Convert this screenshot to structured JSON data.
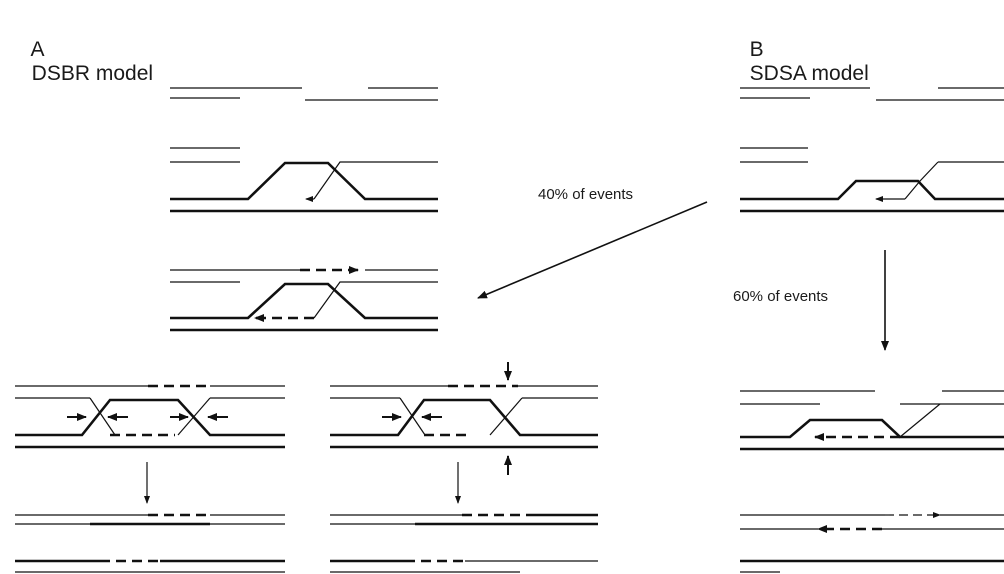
{
  "panels": {
    "a": {
      "letter": "A",
      "title": "DSBR model"
    },
    "b": {
      "letter": "B",
      "title": "SDSA model"
    }
  },
  "annotations": {
    "forty": "40% of events",
    "sixty": "60% of events"
  },
  "colors": {
    "ink": "#111111",
    "background": "#ffffff"
  }
}
